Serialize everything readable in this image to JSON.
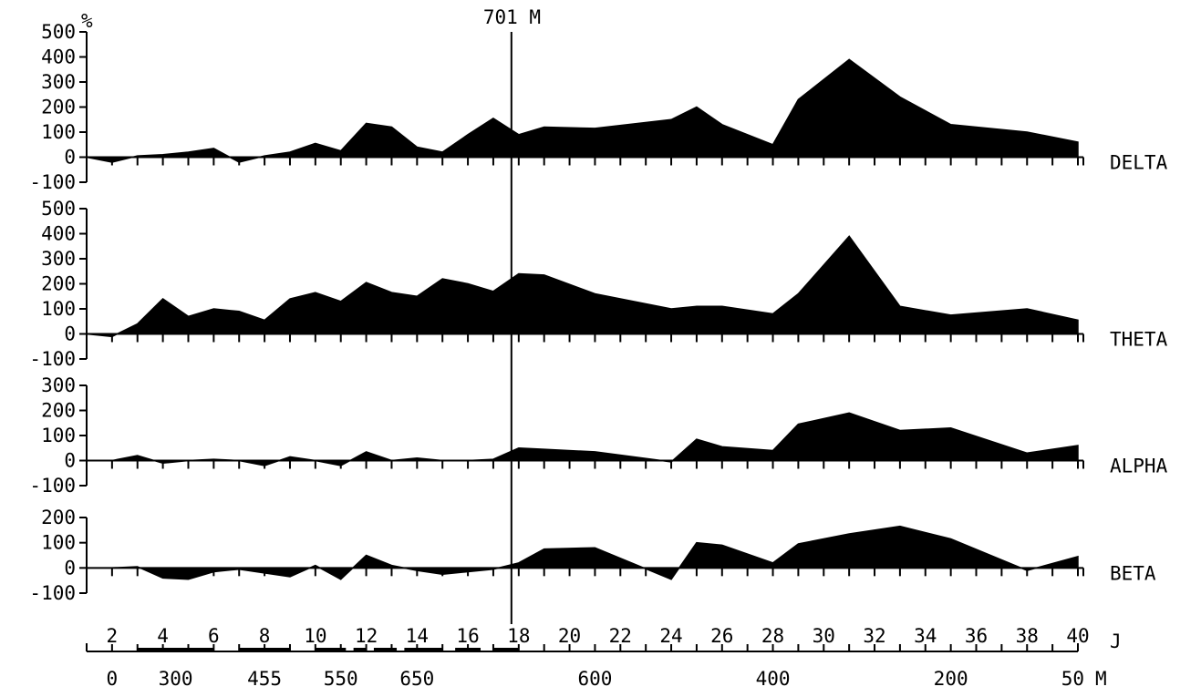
{
  "chart_data": {
    "type": "area",
    "y_unit": "%",
    "marker_label": "701 M",
    "marker_day": 18,
    "day_axis_unit": "J",
    "altitude_axis_unit": "M",
    "day_ticks": [
      2,
      4,
      6,
      8,
      10,
      12,
      14,
      16,
      18,
      20,
      22,
      24,
      26,
      28,
      30,
      32,
      34,
      36,
      38,
      40
    ],
    "altitude_labels": [
      {
        "day": 2,
        "label": "0"
      },
      {
        "day": 4.5,
        "label": "300"
      },
      {
        "day": 8,
        "label": "455"
      },
      {
        "day": 11,
        "label": "550"
      },
      {
        "day": 14,
        "label": "650"
      },
      {
        "day": 21,
        "label": "600"
      },
      {
        "day": 28,
        "label": "400"
      },
      {
        "day": 35,
        "label": "200"
      },
      {
        "day": 39.8,
        "label": "50"
      }
    ],
    "bands": [
      {
        "label": "DELTA",
        "ylim": [
          -100,
          500
        ],
        "y_ticks": [
          "500",
          "400",
          "300",
          "200",
          "100",
          "0",
          "-100"
        ],
        "x": [
          1,
          2,
          3,
          4,
          5,
          6,
          7,
          8,
          9,
          10,
          11,
          12,
          13,
          14,
          15,
          16,
          17,
          18,
          19,
          21,
          24,
          25,
          26,
          28,
          29,
          31,
          33,
          35,
          38,
          40
        ],
        "values": [
          0,
          -20,
          5,
          10,
          20,
          35,
          -20,
          5,
          20,
          55,
          25,
          135,
          120,
          40,
          20,
          90,
          155,
          90,
          120,
          115,
          150,
          200,
          130,
          50,
          230,
          390,
          240,
          130,
          100,
          60
        ]
      },
      {
        "label": "THETA",
        "ylim": [
          -100,
          500
        ],
        "y_ticks": [
          "500",
          "400",
          "300",
          "200",
          "100",
          "0",
          "-100"
        ],
        "x": [
          1,
          2,
          3,
          4,
          5,
          6,
          7,
          8,
          9,
          10,
          11,
          12,
          13,
          14,
          15,
          16,
          17,
          18,
          19,
          21,
          24,
          25,
          26,
          28,
          29,
          31,
          33,
          35,
          38,
          40
        ],
        "values": [
          0,
          -10,
          40,
          140,
          70,
          100,
          90,
          55,
          140,
          165,
          130,
          205,
          165,
          150,
          220,
          200,
          170,
          240,
          235,
          160,
          100,
          110,
          110,
          80,
          160,
          390,
          110,
          75,
          100,
          55
        ]
      },
      {
        "label": "ALPHA",
        "ylim": [
          -100,
          300
        ],
        "y_ticks": [
          "300",
          "200",
          "100",
          "0",
          "-100"
        ],
        "x": [
          1,
          2,
          3,
          4,
          5,
          6,
          7,
          8,
          9,
          10,
          11,
          12,
          13,
          14,
          15,
          16,
          17,
          18,
          19,
          21,
          24,
          25,
          26,
          28,
          29,
          31,
          33,
          35,
          38,
          40
        ],
        "values": [
          0,
          0,
          20,
          -10,
          0,
          5,
          0,
          -20,
          15,
          0,
          -20,
          35,
          0,
          10,
          0,
          0,
          5,
          50,
          45,
          35,
          -5,
          85,
          55,
          40,
          145,
          190,
          120,
          130,
          30,
          60
        ]
      },
      {
        "label": "BETA",
        "ylim": [
          -100,
          200
        ],
        "y_ticks": [
          "200",
          "100",
          "0",
          "-100"
        ],
        "x": [
          1,
          2,
          3,
          4,
          5,
          6,
          7,
          8,
          9,
          10,
          11,
          12,
          13,
          14,
          15,
          16,
          17,
          18,
          19,
          21,
          24,
          25,
          26,
          28,
          29,
          31,
          33,
          35,
          38,
          40
        ],
        "values": [
          0,
          0,
          5,
          -40,
          -45,
          -15,
          -5,
          -20,
          -35,
          10,
          -45,
          50,
          10,
          -10,
          -25,
          -15,
          -5,
          20,
          75,
          80,
          -45,
          100,
          90,
          20,
          95,
          135,
          165,
          115,
          -10,
          45
        ]
      }
    ]
  }
}
